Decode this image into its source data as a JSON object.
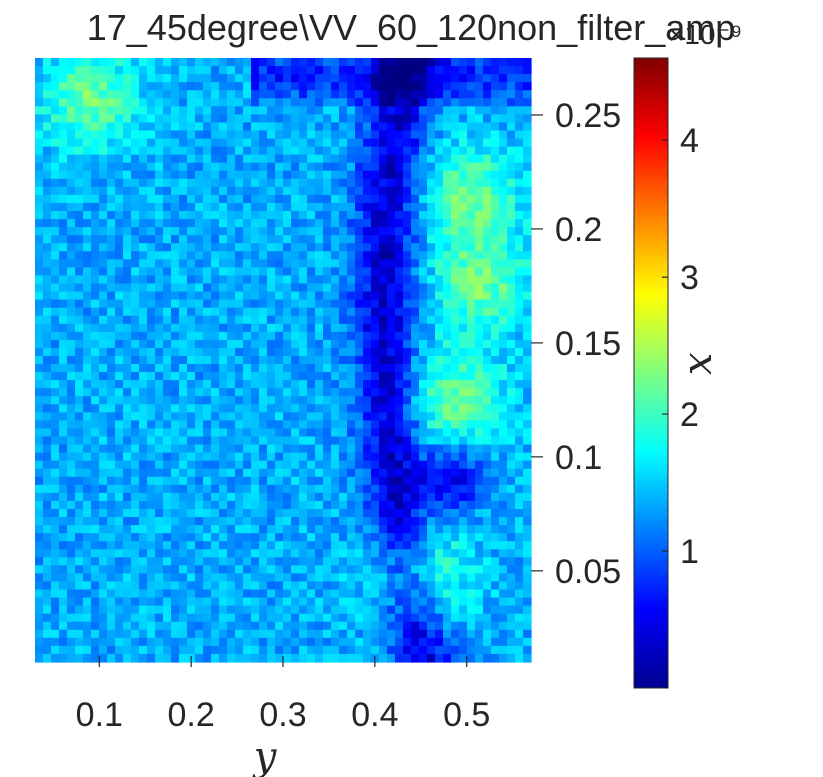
{
  "chart_data": {
    "type": "heatmap",
    "title": "17_45degree\\VV_60_120non_filter_amp",
    "xlabel": "y",
    "ylabel": "x",
    "x_ticks": [
      0.1,
      0.2,
      0.3,
      0.4,
      0.5
    ],
    "x_tick_labels": [
      "0.1",
      "0.2",
      "0.3",
      "0.4",
      "0.5"
    ],
    "y_ticks": [
      0.05,
      0.1,
      0.15,
      0.2,
      0.25
    ],
    "y_tick_labels": [
      "0.05",
      "0.1",
      "0.15",
      "0.2",
      "0.25"
    ],
    "xlim": [
      0.03,
      0.57
    ],
    "ylim": [
      0.01,
      0.275
    ],
    "colormap": "jet",
    "colorbar": {
      "ticks": [
        1,
        2,
        3,
        4
      ],
      "tick_labels": [
        "1",
        "2",
        "3",
        "4"
      ],
      "range": [
        0.0,
        4.6
      ],
      "exponent_label": "×10⁻⁹"
    },
    "value_scale_note": "amplitude values in units of 1e-9",
    "field": {
      "background": 1.35,
      "features": [
        {
          "kind": "dark-ridge",
          "description": "low-amplitude curved band",
          "value": 0.35
        },
        {
          "kind": "bright-patch",
          "value": 2.3
        },
        {
          "kind": "dark-spot",
          "value": 0.55
        }
      ]
    },
    "grid": false
  },
  "colors": {
    "text": "#262626",
    "axis": "#262626"
  }
}
